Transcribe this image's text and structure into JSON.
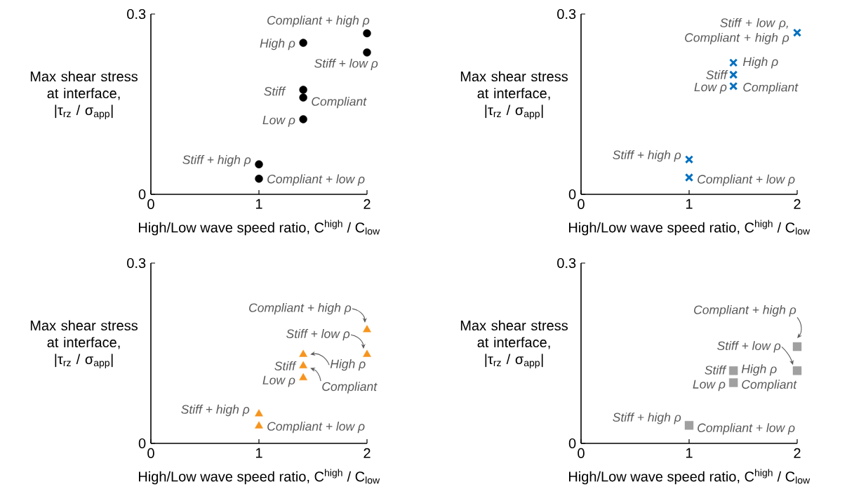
{
  "chart_data": [
    {
      "type": "scatter",
      "marker": "circle",
      "color": "#000000",
      "xlim": [
        0,
        2
      ],
      "ylim": [
        0,
        0.3
      ],
      "xticks": [
        0,
        1,
        2
      ],
      "yticks": [
        0,
        0.3
      ],
      "xlabel": "High/Low wave speed ratio, C$^{high}$ / C$_{low}$",
      "ylabel": "Max shear stress at interface, |τ$_{rz}$ / σ$_{app}$|",
      "x": [
        2,
        2,
        1.41,
        1.41,
        1.41,
        1.41,
        1,
        1
      ],
      "values": [
        0.268,
        0.236,
        0.252,
        0.174,
        0.161,
        0.125,
        0.05,
        0.026
      ],
      "annotations": [
        {
          "text": "Compliant + high ρ",
          "x": 2,
          "y": 0.268
        },
        {
          "text": "High ρ",
          "x": 1.41,
          "y": 0.252
        },
        {
          "text": "Stiff + low ρ",
          "x": 2,
          "y": 0.236
        },
        {
          "text": "Stiff",
          "x": 1.41,
          "y": 0.174
        },
        {
          "text": "Compliant",
          "x": 1.41,
          "y": 0.161
        },
        {
          "text": "Low ρ",
          "x": 1.41,
          "y": 0.125
        },
        {
          "text": "Stiff + high ρ",
          "x": 1,
          "y": 0.05
        },
        {
          "text": "Compliant + low ρ",
          "x": 1,
          "y": 0.026
        }
      ]
    },
    {
      "type": "scatter",
      "marker": "cross",
      "color": "#0070c0",
      "xlim": [
        0,
        2
      ],
      "ylim": [
        0,
        0.3
      ],
      "xticks": [
        0,
        1,
        2
      ],
      "yticks": [
        0,
        0.3
      ],
      "xlabel": "High/Low wave speed ratio, C$^{high}$ / C$_{low}$",
      "ylabel": "Max shear stress at interface, |τ$_{rz}$ / σ$_{app}$|",
      "x": [
        2,
        1.41,
        1.41,
        1.41,
        1,
        1
      ],
      "values": [
        0.269,
        0.219,
        0.199,
        0.18,
        0.058,
        0.028
      ],
      "annotations": [
        {
          "text": "Stiff + low ρ, Compliant + high ρ",
          "x": 2,
          "y": 0.269
        },
        {
          "text": "High ρ",
          "x": 1.41,
          "y": 0.219
        },
        {
          "text": "Stiff",
          "x": 1.41,
          "y": 0.199
        },
        {
          "text": "Low ρ",
          "x": 1.41,
          "y": 0.18
        },
        {
          "text": "Compliant",
          "x": 1.41,
          "y": 0.18
        },
        {
          "text": "Stiff + high ρ",
          "x": 1,
          "y": 0.058
        },
        {
          "text": "Compliant + low ρ",
          "x": 1,
          "y": 0.028
        }
      ]
    },
    {
      "type": "scatter",
      "marker": "triangle",
      "color": "#f7941d",
      "xlim": [
        0,
        2
      ],
      "ylim": [
        0,
        0.3
      ],
      "xticks": [
        0,
        1,
        2
      ],
      "yticks": [
        0,
        0.3
      ],
      "xlabel": "High/Low wave speed ratio, C$^{high}$ / C$_{low}$",
      "ylabel": "Max shear stress at interface, |τ$_{rz}$ / σ$_{app}$|",
      "x": [
        2,
        2,
        1.41,
        1.41,
        1.41,
        1,
        1
      ],
      "values": [
        0.189,
        0.148,
        0.148,
        0.129,
        0.109,
        0.049,
        0.029
      ],
      "annotations": [
        {
          "text": "Compliant + high ρ",
          "x": 2,
          "y": 0.189
        },
        {
          "text": "Stiff + low ρ",
          "x": 2,
          "y": 0.148
        },
        {
          "text": "High ρ",
          "x": 1.41,
          "y": 0.148
        },
        {
          "text": "Stiff",
          "x": 1.41,
          "y": 0.129
        },
        {
          "text": "Compliant",
          "x": 1.41,
          "y": 0.129
        },
        {
          "text": "Low ρ",
          "x": 1.41,
          "y": 0.109
        },
        {
          "text": "Stiff + high ρ",
          "x": 1,
          "y": 0.049
        },
        {
          "text": "Compliant + low ρ",
          "x": 1,
          "y": 0.029
        }
      ]
    },
    {
      "type": "scatter",
      "marker": "square",
      "color": "#a0a0a0",
      "xlim": [
        0,
        2
      ],
      "ylim": [
        0,
        0.3
      ],
      "xticks": [
        0,
        1,
        2
      ],
      "yticks": [
        0,
        0.3
      ],
      "xlabel": "High/Low wave speed ratio, C$^{high}$ / C$_{low}$",
      "ylabel": "Max shear stress at interface, |τ$_{rz}$ / σ$_{app}$|",
      "x": [
        2,
        2,
        1.41,
        1.41,
        1
      ],
      "values": [
        0.161,
        0.121,
        0.121,
        0.101,
        0.03
      ],
      "annotations": [
        {
          "text": "Compliant + high ρ",
          "x": 2,
          "y": 0.161
        },
        {
          "text": "Stiff + low ρ",
          "x": 2,
          "y": 0.121
        },
        {
          "text": "Stiff",
          "x": 1.41,
          "y": 0.121
        },
        {
          "text": "High ρ",
          "x": 1.41,
          "y": 0.121
        },
        {
          "text": "Low ρ",
          "x": 1.41,
          "y": 0.101
        },
        {
          "text": "Compliant",
          "x": 1.41,
          "y": 0.101
        },
        {
          "text": "Stiff + high ρ",
          "x": 1,
          "y": 0.03
        },
        {
          "text": "Compliant + low ρ",
          "x": 1,
          "y": 0.03
        }
      ]
    }
  ]
}
